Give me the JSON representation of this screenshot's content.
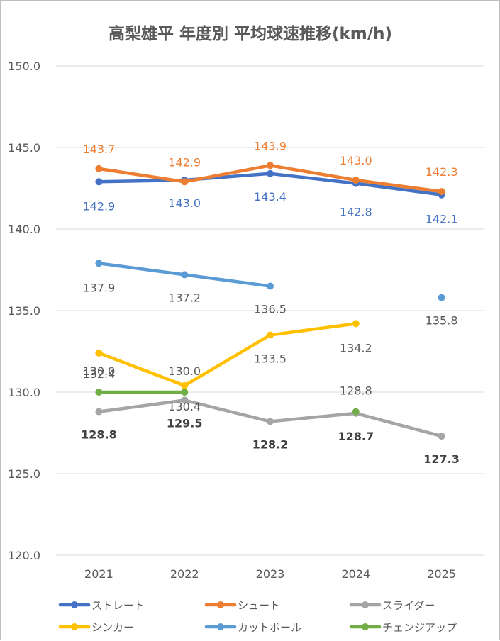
{
  "chart_data": {
    "type": "line",
    "title": "高梨雄平 年度別 平均球速推移(km/h)",
    "categories": [
      "2021",
      "2022",
      "2023",
      "2024",
      "2025"
    ],
    "ylim": [
      120.0,
      150.0
    ],
    "yticks": [
      "150.0",
      "145.0",
      "140.0",
      "135.0",
      "130.0",
      "125.0",
      "120.0"
    ],
    "grid": true,
    "legend_position": "bottom",
    "series": [
      {
        "name": "ストレート",
        "color": "#4472C4",
        "values": [
          142.9,
          143.0,
          143.4,
          142.8,
          142.1
        ],
        "labels": [
          "142.9",
          "143.0",
          "143.4",
          "142.8",
          "142.1"
        ]
      },
      {
        "name": "シュート",
        "color": "#ED7D31",
        "values": [
          143.7,
          142.9,
          143.9,
          143.0,
          142.3
        ],
        "labels": [
          "143.7",
          "142.9",
          "143.9",
          "143.0",
          "142.3"
        ]
      },
      {
        "name": "スライダー",
        "color": "#A5A5A5",
        "values": [
          128.8,
          129.5,
          128.2,
          128.7,
          127.3
        ],
        "labels": [
          "128.8",
          "129.5",
          "128.2",
          "128.7",
          "127.3"
        ]
      },
      {
        "name": "シンカー",
        "color": "#FFC000",
        "values": [
          132.4,
          130.4,
          133.5,
          134.2,
          null
        ],
        "labels": [
          "132.4",
          "130.4",
          "133.5",
          "134.2",
          null
        ]
      },
      {
        "name": "カットボール",
        "color": "#5B9BD5",
        "values": [
          137.9,
          137.2,
          136.5,
          null,
          135.8
        ],
        "labels": [
          "137.9",
          "137.2",
          "136.5",
          null,
          "135.8"
        ]
      },
      {
        "name": "チェンジアップ",
        "color": "#70AD47",
        "values": [
          130.0,
          130.0,
          null,
          128.8,
          null
        ],
        "labels": [
          "130.0",
          "130.0",
          null,
          "128.8",
          null
        ]
      }
    ]
  }
}
